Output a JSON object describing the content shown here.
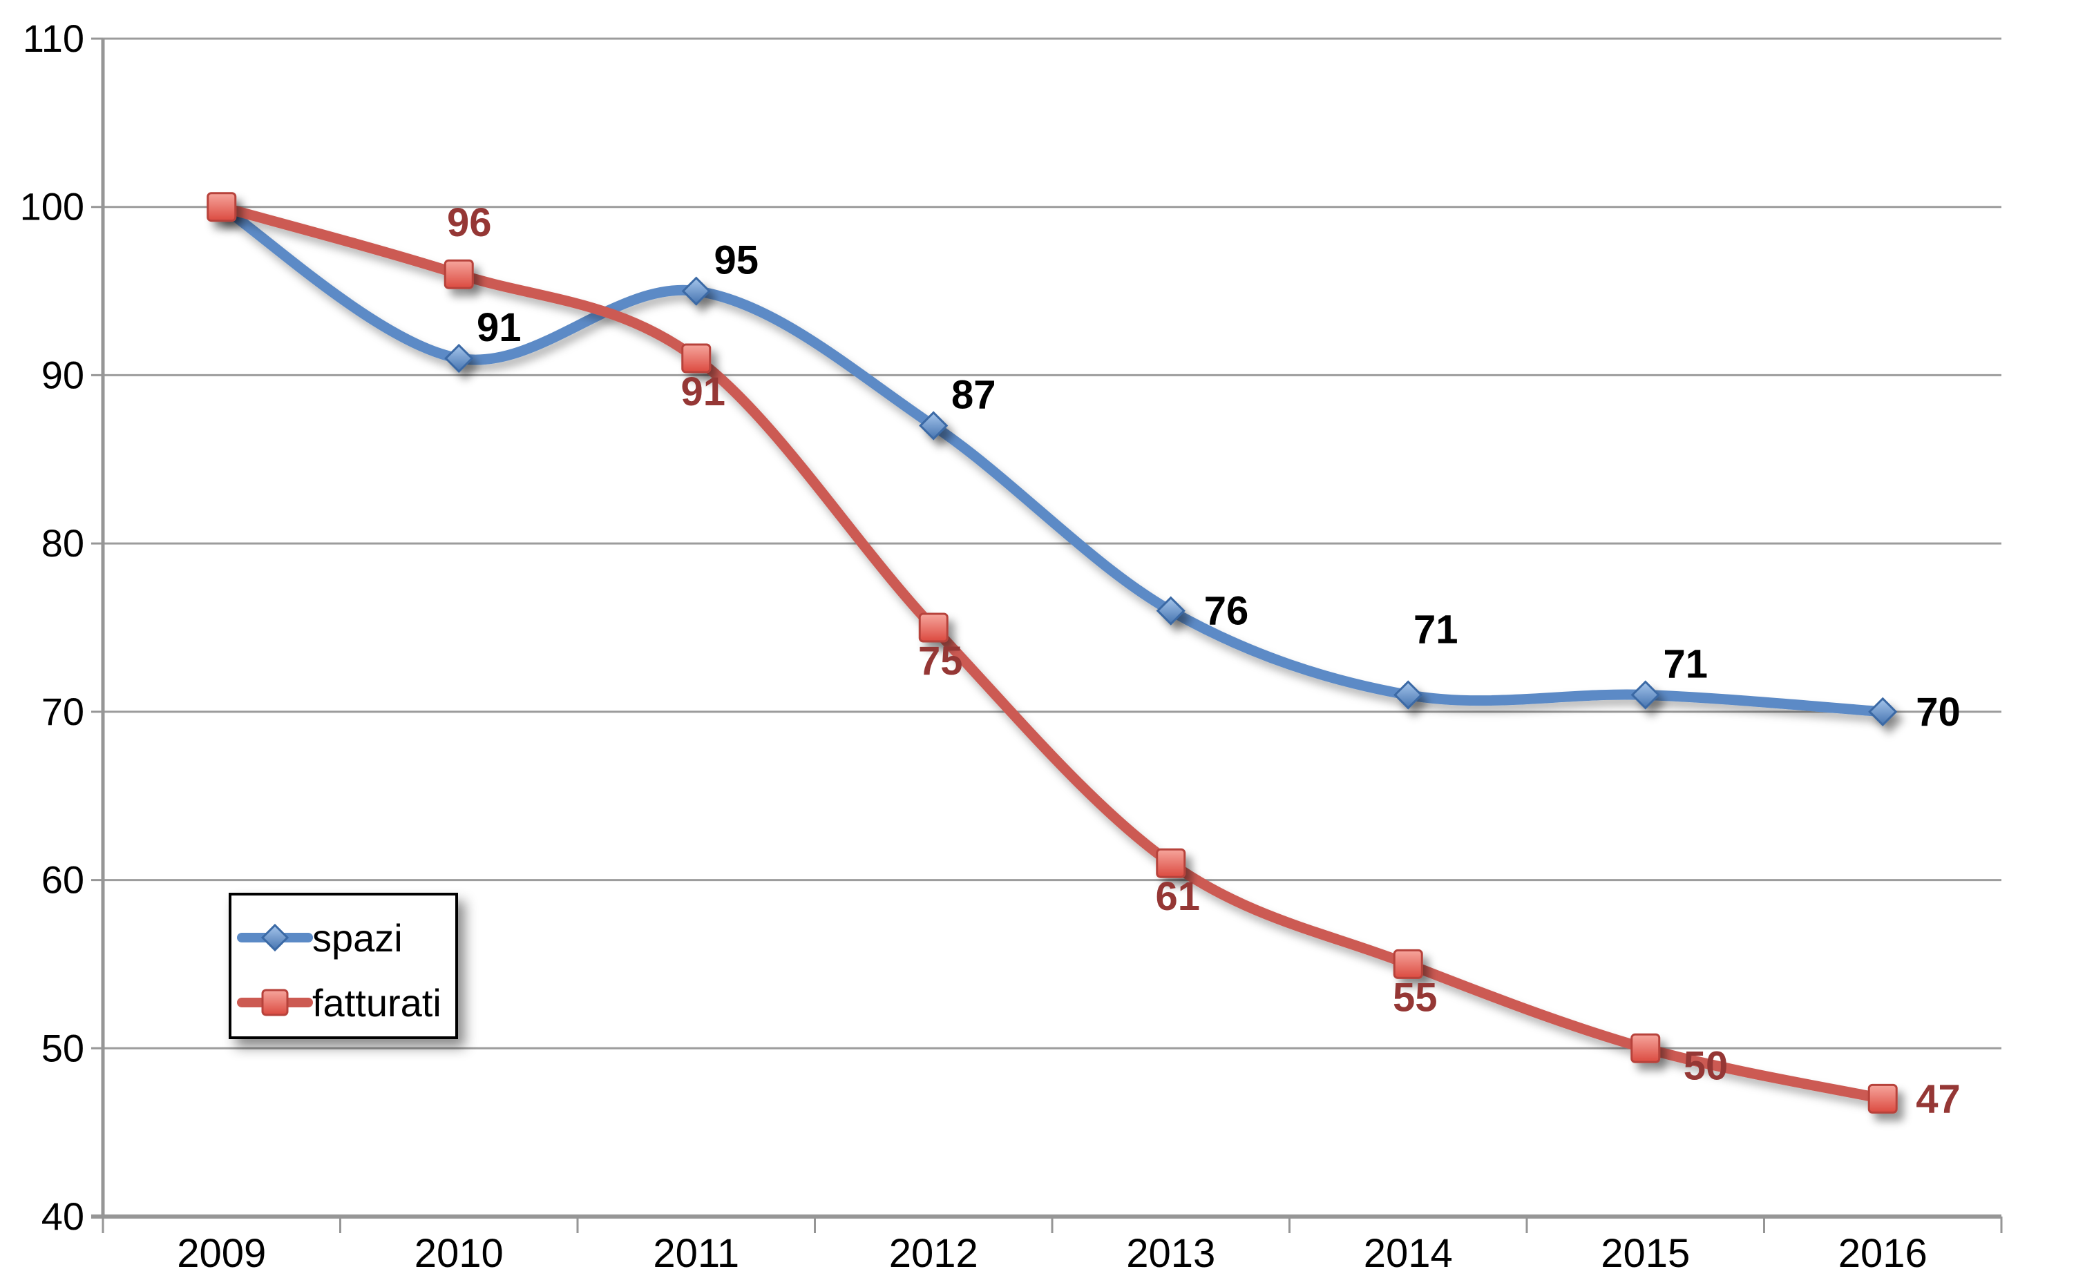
{
  "chart_data": {
    "type": "line",
    "title": "",
    "categories": [
      "2009",
      "2010",
      "2011",
      "2012",
      "2013",
      "2014",
      "2015",
      "2016"
    ],
    "series": [
      {
        "name": "spazi",
        "values": [
          100,
          91,
          95,
          87,
          76,
          71,
          71,
          70
        ],
        "point_labels": [
          "",
          "91",
          "95",
          "87",
          "76",
          "71",
          "71",
          "70"
        ],
        "label_placements": [
          "",
          "above-right",
          "above-right",
          "above-right",
          "right",
          "high-above",
          "above-right",
          "right"
        ],
        "line_color": "#5B8AC6",
        "label_color": "#000000",
        "marker": "diamond",
        "marker_gradient": [
          "#A6C6EC",
          "#4674B0"
        ],
        "marker_stroke": "#3A69A5"
      },
      {
        "name": "fatturati",
        "values": [
          100,
          96,
          91,
          75,
          61,
          55,
          50,
          47
        ],
        "point_labels": [
          "",
          "96",
          "91",
          "75",
          "61",
          "55",
          "50",
          "47"
        ],
        "label_placements": [
          "",
          "above",
          "below",
          "below",
          "below",
          "below",
          "below-right",
          "right"
        ],
        "line_color": "#CC5A52",
        "label_color": "#953735",
        "marker": "square",
        "marker_gradient": [
          "#F6A69D",
          "#DB4A40"
        ],
        "marker_stroke": "#B7423B"
      }
    ],
    "y_axis": {
      "min": 40,
      "max": 110,
      "step": 10,
      "tick_labels": [
        "110",
        "100",
        "90",
        "80",
        "70",
        "60",
        "50",
        "40"
      ]
    },
    "x_axis": {
      "tick_labels": [
        "2009",
        "2010",
        "2011",
        "2012",
        "2013",
        "2014",
        "2015",
        "2016"
      ]
    },
    "grid": true,
    "legend": {
      "position": "middle-left",
      "items": [
        "spazi",
        "fatturati"
      ]
    },
    "colors": {
      "gridline": "#9C9C9C",
      "axis": "#969696",
      "background": "#FFFFFF",
      "tick_label": "#000000"
    }
  }
}
